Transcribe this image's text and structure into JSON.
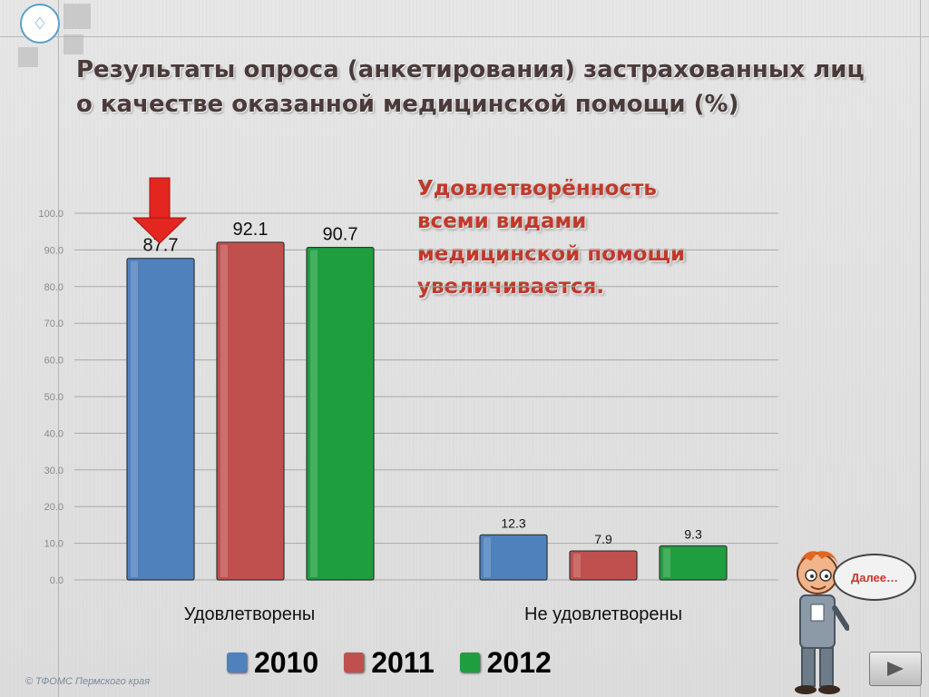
{
  "header": {
    "title_line1": "Результаты опроса (анкетирования) застрахованных лиц",
    "title_line2": "о качестве оказанной медицинской помощи (%)"
  },
  "callout": {
    "line1": "Удовлетворённость",
    "line2": "всеми видами",
    "line3": "медицинской помощи",
    "line4": "увеличивается."
  },
  "chart_data": {
    "type": "bar",
    "categories": [
      "Удовлетворены",
      "Не удовлетворены"
    ],
    "series": [
      {
        "name": "2010",
        "values": [
          87.7,
          12.3
        ],
        "color": "#4f81bd"
      },
      {
        "name": "2011",
        "values": [
          92.1,
          7.9
        ],
        "color": "#c0504d"
      },
      {
        "name": "2012",
        "values": [
          90.7,
          9.3
        ],
        "color": "#1e9e3e"
      }
    ],
    "ylim": [
      0,
      100
    ],
    "yticks": [
      "0.0",
      "10.0",
      "20.0",
      "30.0",
      "40.0",
      "50.0",
      "60.0",
      "70.0",
      "80.0",
      "90.0",
      "100.0"
    ],
    "data_labels": [
      [
        "87.7",
        "12.3"
      ],
      [
        "92.1",
        "7.9"
      ],
      [
        "90.7",
        "9.3"
      ]
    ],
    "grid": true,
    "legend": "bottom"
  },
  "footer": {
    "copyright": "© ТФОМС Пермского края",
    "next_label": "Далее…"
  },
  "icons": {
    "logo": "tfoms-logo-icon",
    "arrow_down": "red-down-arrow-icon",
    "next": "play-triangle-icon",
    "mascot": "cartoon-man-icon"
  }
}
